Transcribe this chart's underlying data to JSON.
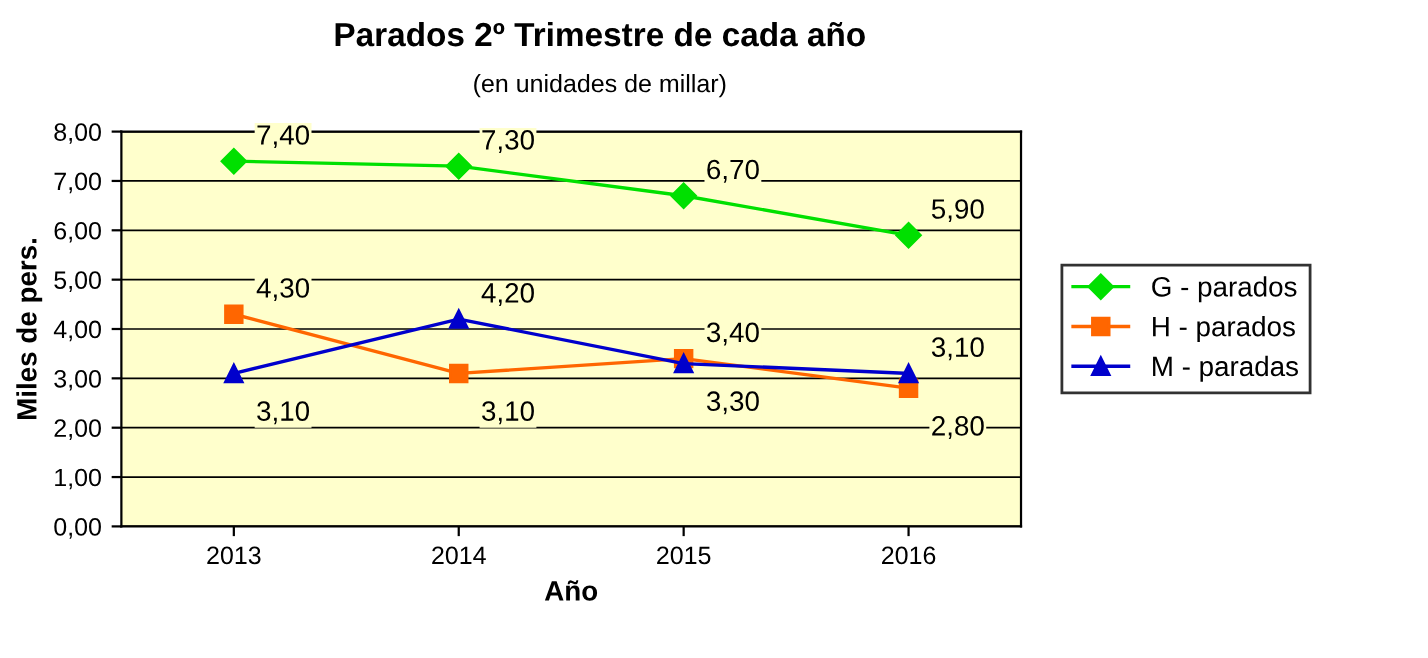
{
  "chart_data": {
    "type": "line",
    "title": "Parados 2º Trimestre de cada año",
    "subtitle": "(en unidades de millar)",
    "xlabel": "Año",
    "ylabel": "Miles de pers.",
    "categories": [
      "2013",
      "2014",
      "2015",
      "2016"
    ],
    "series": [
      {
        "name": "G - parados",
        "color": "#00e000",
        "marker": "diamond",
        "values": [
          7.4,
          7.3,
          6.7,
          5.9
        ],
        "value_labels": [
          "7,40",
          "7,30",
          "6,70",
          "5,90"
        ]
      },
      {
        "name": "H - parados",
        "color": "#ff6600",
        "marker": "square",
        "values": [
          4.3,
          3.1,
          3.4,
          2.8
        ],
        "value_labels": [
          "4,30",
          "3,10",
          "3,40",
          "2,80"
        ]
      },
      {
        "name": "M - paradas",
        "color": "#0000cc",
        "marker": "triangle",
        "values": [
          3.1,
          4.2,
          3.3,
          3.1
        ],
        "value_labels": [
          "3,10",
          "4,20",
          "3,30",
          "3,10"
        ]
      }
    ],
    "ylim": [
      0,
      8
    ],
    "yticks": [
      {
        "value": 0,
        "label": "0,00"
      },
      {
        "value": 1,
        "label": "1,00"
      },
      {
        "value": 2,
        "label": "2,00"
      },
      {
        "value": 3,
        "label": "3,00"
      },
      {
        "value": 4,
        "label": "4,00"
      },
      {
        "value": 5,
        "label": "5,00"
      },
      {
        "value": 6,
        "label": "6,00"
      },
      {
        "value": 7,
        "label": "7,00"
      },
      {
        "value": 8,
        "label": "8,00"
      }
    ],
    "grid": "y",
    "legend": "right",
    "line_style": "solid"
  }
}
